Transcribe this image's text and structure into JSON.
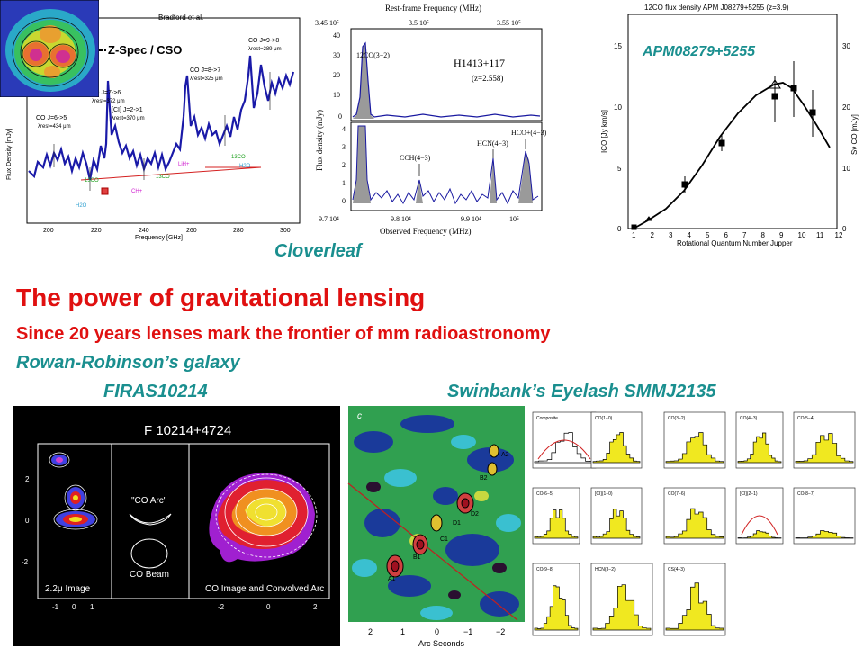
{
  "captions": {
    "cloverleaf": "Cloverleaf",
    "headline": "The power of gravitational lensing",
    "subhead": "Since 20 years lenses mark the frontier of mm radioastronomy",
    "rowan": "Rowan-Robinson’s galaxy",
    "firas": "FIRAS10214",
    "eyelash": "Swinbank’s Eyelash  SMMJ2135",
    "apm": "APM08279+5255"
  },
  "panel1": {
    "author": "Bradford et al.",
    "instrument": "Z-Spec / CSO",
    "ylabel": "Flux Density [mJy]",
    "xlabel": "Frequency [GHz]",
    "xticks": [
      "200",
      "220",
      "240",
      "260",
      "280",
      "300"
    ],
    "lines": [
      {
        "label": "CO J=6->5",
        "sub": "λrest=434 μm"
      },
      {
        "label": "CO J=7->6",
        "sub": "λrest=372 μm"
      },
      {
        "label": "[CI] J=2->1",
        "sub": "λrest=370 μm"
      },
      {
        "label": "CO J=8->7",
        "sub": "λrest=325 μm"
      },
      {
        "label": "CO J=9->8",
        "sub": "λrest=289 μm"
      }
    ],
    "species": [
      "H2O",
      "13CO",
      "CH+",
      "LiH+",
      "H2O",
      "13CO",
      "13CO"
    ]
  },
  "panel2": {
    "top_axis_title": "Rest-frame Frequency (MHz)",
    "top_ticks": [
      "3.45 10⁵",
      "3.5 10⁵",
      "3.55 10⁵"
    ],
    "ylabel": "Flux density (mJy)",
    "xlabel": "Observed Frequency (MHz)",
    "bottom_ticks": [
      "9.7 10⁴",
      "9.8 10⁴",
      "9.9 10⁴",
      "10⁵"
    ],
    "upper_yticks": [
      "40",
      "30",
      "20",
      "10",
      "0"
    ],
    "lower_yticks": [
      "4",
      "3",
      "2",
      "1",
      "0"
    ],
    "source": "H1413+117",
    "redshift": "(z=2.558)",
    "lines": [
      "12CO(3−2)",
      "CCH(4−3)",
      "HCN(4−3)",
      "HCO+(4−3)"
    ]
  },
  "panel3": {
    "title": "12CO flux density APM J08279+5255 (z=3.9)",
    "ylabel_left": "ICO [Jy km/s]",
    "ylabel_right": "Sν CO [mJy]",
    "xlabel": "Rotational Quantum Number Jupper",
    "yticks_left": [
      "0",
      "5",
      "10",
      "15"
    ],
    "yticks_right": [
      "0",
      "10",
      "20",
      "30"
    ],
    "xticks": [
      "1",
      "2",
      "3",
      "4",
      "5",
      "6",
      "7",
      "8",
      "9",
      "10",
      "11",
      "12"
    ]
  },
  "panel4": {
    "title": "F 10214+4724",
    "sub_labels": [
      "2.2μ Image",
      "\"CO Arc\"",
      "CO Beam",
      "CO Image and Convolved Arc"
    ],
    "yticks": [
      "2",
      "0",
      "-2"
    ],
    "xticks": [
      "-1",
      "0",
      "1",
      "-2",
      "0",
      "2"
    ]
  },
  "panel5": {
    "corner": "c",
    "xlabel": "Arc Seconds",
    "xticks": [
      "2",
      "1",
      "0",
      "−1",
      "−2"
    ],
    "knots": [
      "A1",
      "B1",
      "C1",
      "D1",
      "D2",
      "B2",
      "A2"
    ]
  },
  "panel6": {
    "cells": [
      "Composite",
      "CO(1−0)",
      "CO(3−2)",
      "CO(4−3)",
      "CO(5−4)",
      "CO(6−5)",
      "[CI](1−0)",
      "CO(7−6)",
      "[CI](2−1)",
      "CO(8−7)",
      "CO(9−8)",
      "HCN(3−2)",
      "CS(4−3)",
      "HCO+(3−2)",
      "[CI]",
      "HNC"
    ]
  }
}
